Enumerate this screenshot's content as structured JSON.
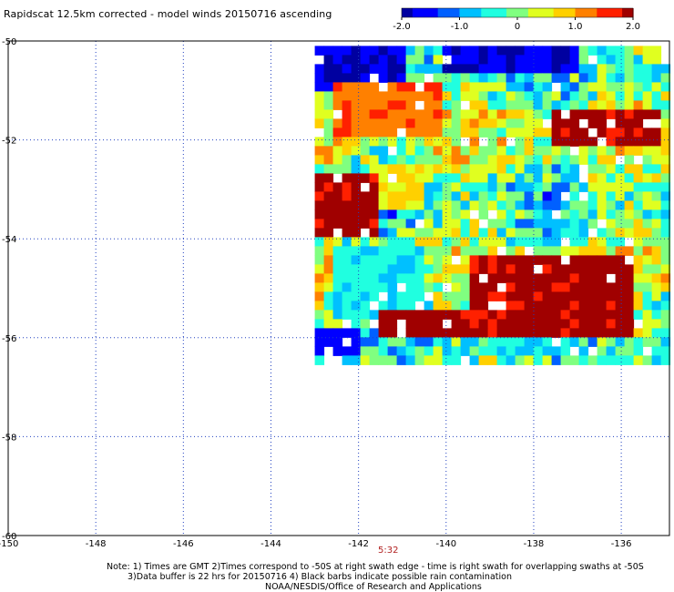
{
  "title": "Rapidscat 12.5km corrected - model winds 20150716 ascending",
  "time_label": "5:32",
  "notes": {
    "line1": "Note: 1) Times are GMT 2)Times correspond to -50S at right swath edge - time is right swath for overlapping swaths at -50S",
    "line2": "3)Data buffer is 22 hrs for 20150716 4) Black barbs indicate possible rain contamination",
    "line3": "NOAA/NESDIS/Office of Research and Applications"
  },
  "colorbar": {
    "ticks": [
      "-2.0",
      "-1.0",
      "0",
      "1.0",
      "2.0"
    ],
    "range": [
      -2.0,
      2.0
    ],
    "colors": [
      "#0000a0",
      "#0000ff",
      "#0060ff",
      "#00c0ff",
      "#20ffe0",
      "#80ff80",
      "#e0ff20",
      "#ffd000",
      "#ff8000",
      "#ff2000",
      "#a00000"
    ]
  },
  "chart_data": {
    "type": "heatmap",
    "title": "Rapidscat 12.5km corrected - model winds 20150716 ascending",
    "x_ticks": [
      "-150",
      "-148",
      "-146",
      "-144",
      "-142",
      "-140",
      "-138",
      "-136"
    ],
    "y_ticks": [
      "-50",
      "-52",
      "-54",
      "-56",
      "-58",
      "-60"
    ],
    "xlim": [
      -150,
      -134.9
    ],
    "ylim": [
      -60,
      -50
    ],
    "grid": true,
    "colorbar_position": "top-right",
    "swath_extent": {
      "lon": [
        -143.0,
        -135.0
      ],
      "lat": [
        -56.4,
        -50.1
      ]
    },
    "value_regions": [
      {
        "lon": [
          -143.0,
          -141.0
        ],
        "lat": [
          -51.0,
          -50.1
        ],
        "value": -1.7
      },
      {
        "lon": [
          -140.0,
          -137.0
        ],
        "lat": [
          -50.7,
          -50.1
        ],
        "value": -1.8
      },
      {
        "lon": [
          -143.0,
          -141.5
        ],
        "lat": [
          -54.0,
          -52.7
        ],
        "value": 2.0
      },
      {
        "lon": [
          -139.5,
          -135.8
        ],
        "lat": [
          -56.0,
          -54.3
        ],
        "value": 2.0
      },
      {
        "lon": [
          -141.5,
          -139.5
        ],
        "lat": [
          -56.0,
          -55.5
        ],
        "value": 2.0
      },
      {
        "lon": [
          -137.5,
          -135.0
        ],
        "lat": [
          -52.2,
          -51.3
        ],
        "value": 2.0
      },
      {
        "lon": [
          -142.5,
          -140.0
        ],
        "lat": [
          -52.0,
          -50.8
        ],
        "value": 1.3
      },
      {
        "lon": [
          -141.5,
          -140.5
        ],
        "lat": [
          -53.5,
          -52.5
        ],
        "value": 0.6
      },
      {
        "lon": [
          -142.5,
          -140.5
        ],
        "lat": [
          -55.5,
          -54.2
        ],
        "value": -0.5
      },
      {
        "lon": [
          -143.0,
          -142.0
        ],
        "lat": [
          -56.4,
          -55.9
        ],
        "value": -1.5
      },
      {
        "lon": [
          -139.0,
          -137.0
        ],
        "lat": [
          -56.4,
          -56.0
        ],
        "value": -0.6
      }
    ]
  }
}
